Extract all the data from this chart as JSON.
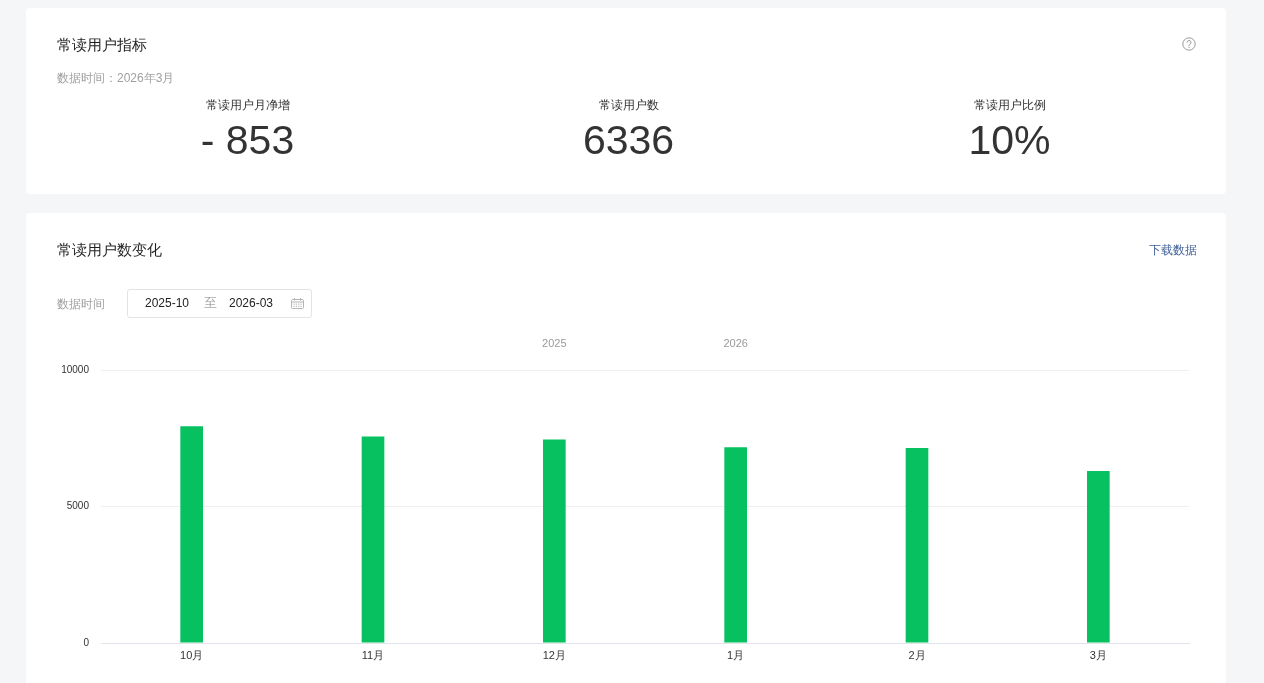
{
  "chart_data": [
    {
      "type": "other",
      "title": "常读用户指标",
      "subtitle": "数据时间：2026年3月",
      "categories": [
        "常读用户月净增",
        "常读用户数",
        "常读用户比例"
      ],
      "values": [
        -853,
        6336,
        10
      ],
      "value_labels": [
        "- 853",
        "6336",
        "10%"
      ]
    },
    {
      "type": "bar",
      "title": "常读用户数变化",
      "categories": [
        "10月",
        "11月",
        "12月",
        "1月",
        "2月",
        "3月"
      ],
      "values": [
        7940,
        7560,
        7450,
        7170,
        7140,
        6300
      ],
      "color": "#07c160",
      "ylim": [
        0,
        10000
      ],
      "yticks": [
        0,
        5000,
        10000
      ],
      "grid": "y",
      "annotations": [
        "2025",
        "2026",
        "下载数据",
        "数据时间",
        "2025-10",
        "至",
        "2026-03"
      ]
    }
  ]
}
